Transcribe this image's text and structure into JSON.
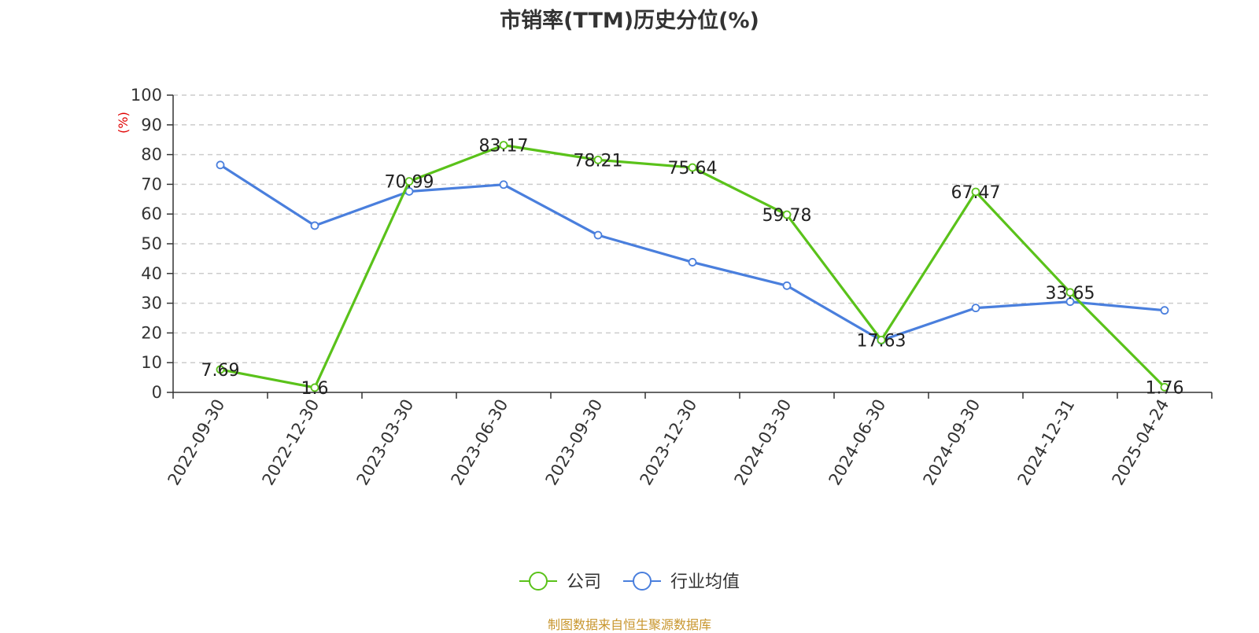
{
  "chart_data": {
    "type": "line",
    "title": "市销率(TTM)历史分位(%)",
    "ylabel": "(%)",
    "xlabel": "",
    "ylim": [
      0,
      100
    ],
    "yticks": [
      0,
      10,
      20,
      30,
      40,
      50,
      60,
      70,
      80,
      90,
      100
    ],
    "grid": true,
    "legend_position": "bottom",
    "categories": [
      "2022-09-30",
      "2022-12-30",
      "2023-03-30",
      "2023-06-30",
      "2023-09-30",
      "2023-12-30",
      "2024-03-30",
      "2024-06-30",
      "2024-09-30",
      "2024-12-31",
      "2025-04-24"
    ],
    "series": [
      {
        "name": "公司",
        "color": "#5ac21a",
        "values": [
          7.69,
          1.6,
          70.99,
          83.17,
          78.21,
          75.64,
          59.78,
          17.63,
          67.47,
          33.65,
          1.76
        ],
        "labels": [
          "7.69",
          "1.6",
          "70.99",
          "83.17",
          "78.21",
          "75.64",
          "59.78",
          "17.63",
          "67.47",
          "33.65",
          "1.76"
        ]
      },
      {
        "name": "行业均值",
        "color": "#4a7fdd",
        "values": [
          76.5,
          56.1,
          67.6,
          69.9,
          52.9,
          43.8,
          35.9,
          17.5,
          28.4,
          30.5,
          27.6
        ]
      }
    ]
  },
  "source": "制图数据来自恒生聚源数据库"
}
